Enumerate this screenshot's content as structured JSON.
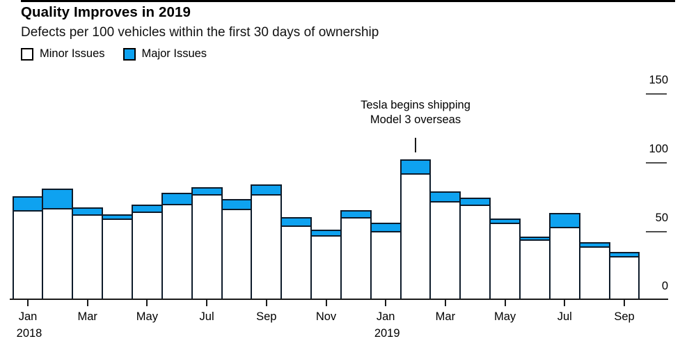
{
  "header": {
    "title": "Quality Improves in 2019",
    "subtitle": "Defects per 100 vehicles within the first 30 days of ownership"
  },
  "legend": [
    {
      "label": "Minor Issues",
      "color": "#ffffff"
    },
    {
      "label": "Major Issues",
      "color": "#0ea2f0"
    }
  ],
  "annotation": {
    "line1": "Tesla begins shipping",
    "line2": "Model 3 overseas",
    "target_category": "Feb 2019"
  },
  "colors": {
    "major_blue": "#0ea2f0",
    "minor_white": "#ffffff",
    "bar_outline": "#0d1b2a",
    "axis": "#1a1a1a",
    "tick_dash": "#4d4d4d",
    "text": "#000000"
  },
  "chart_data": {
    "type": "bar",
    "stacked": true,
    "title": "Quality Improves in 2019",
    "subtitle": "Defects per 100 vehicles within the first 30 days of ownership",
    "xlabel": "",
    "ylabel": "Defects per 100 vehicles",
    "ylim": [
      0,
      150
    ],
    "y_ticks": [
      0,
      50,
      100,
      150
    ],
    "grid": false,
    "legend_position": "top-left",
    "categories": [
      "Jan 2018",
      "Feb 2018",
      "Mar 2018",
      "Apr 2018",
      "May 2018",
      "Jun 2018",
      "Jul 2018",
      "Aug 2018",
      "Sep 2018",
      "Oct 2018",
      "Nov 2018",
      "Dec 2018",
      "Jan 2019",
      "Feb 2019",
      "Mar 2019",
      "Apr 2019",
      "May 2019",
      "Jun 2019",
      "Jul 2019",
      "Aug 2019",
      "Sep 2019"
    ],
    "series": [
      {
        "name": "Minor Issues",
        "values": [
          64,
          66,
          61,
          58,
          63,
          69,
          76,
          65,
          76,
          53,
          46,
          59,
          49,
          91,
          71,
          68,
          55,
          43,
          52,
          38,
          31
        ]
      },
      {
        "name": "Major Issues",
        "values": [
          10,
          14,
          5,
          3,
          5,
          8,
          5,
          7,
          7,
          6,
          4,
          5,
          6,
          10,
          7,
          5,
          3,
          2,
          10,
          3,
          3
        ]
      }
    ],
    "x_tick_label_indices": [
      0,
      2,
      4,
      6,
      8,
      10,
      12,
      14,
      16,
      18,
      20
    ],
    "x_tick_labels": [
      "Jan",
      "Mar",
      "May",
      "Jul",
      "Sep",
      "Nov",
      "Jan",
      "Mar",
      "May",
      "Jul",
      "Sep"
    ],
    "x_year_labels": [
      {
        "text": "2018",
        "category_index": 0
      },
      {
        "text": "2019",
        "category_index": 12
      }
    ],
    "annotation_text": "Tesla begins shipping Model 3 overseas",
    "annotation_target_index": 13
  }
}
